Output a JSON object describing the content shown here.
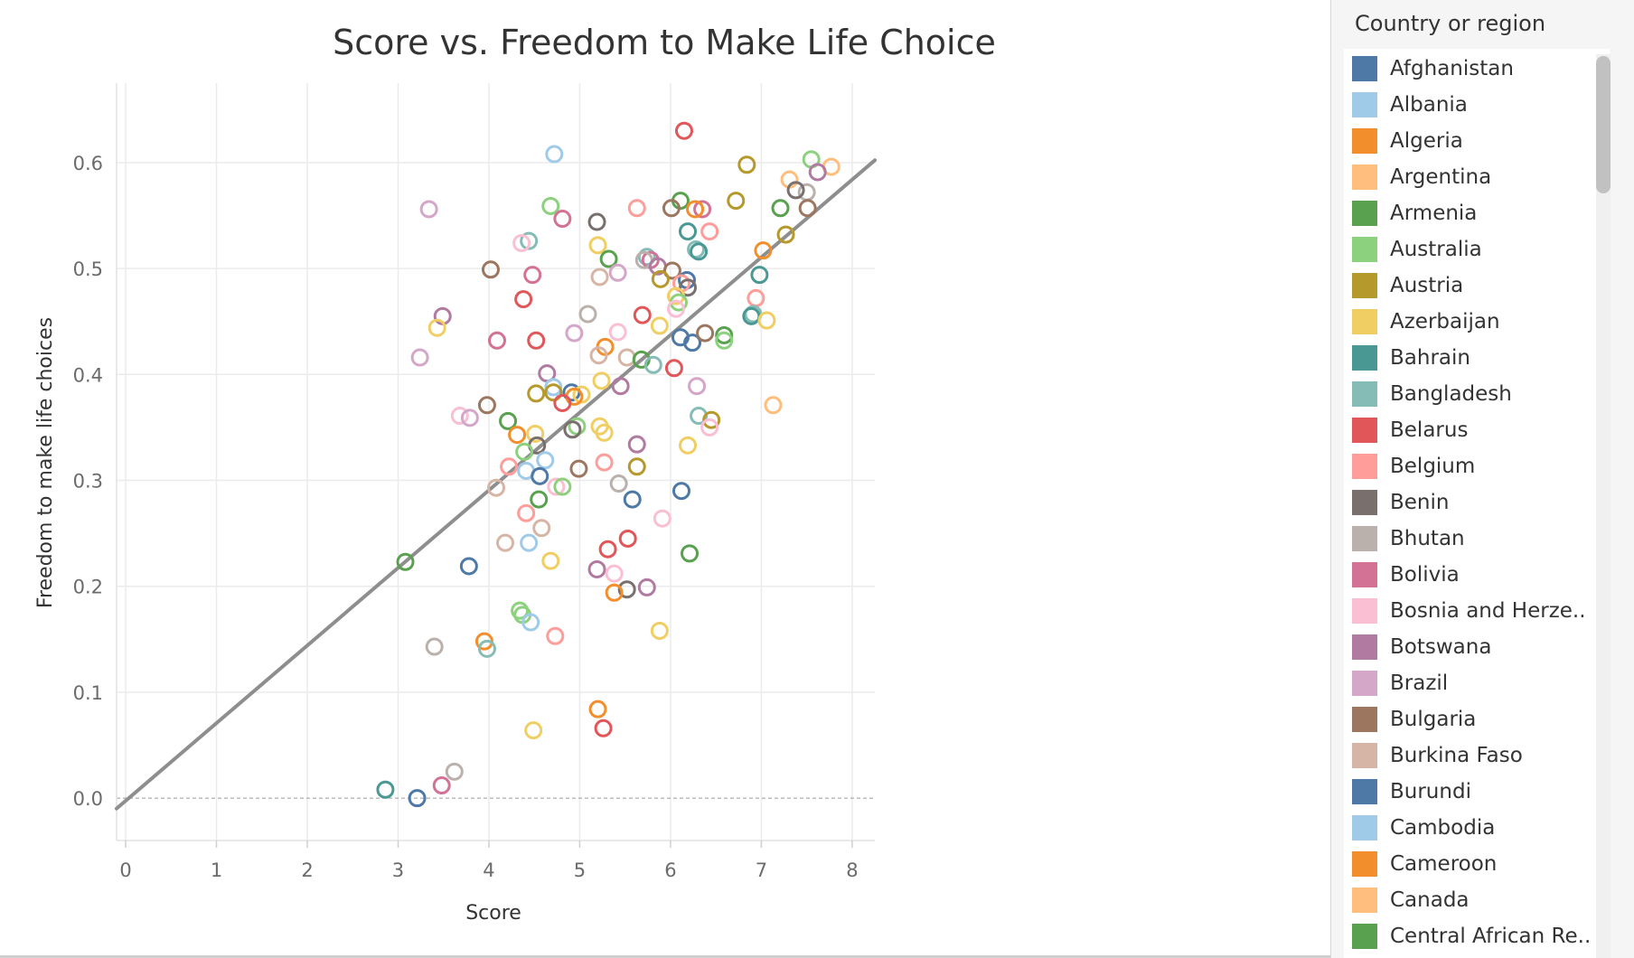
{
  "legend": {
    "title": "Country or region",
    "items": [
      {
        "label": "Afghanistan",
        "color": "#4e79a7"
      },
      {
        "label": "Albania",
        "color": "#a0cbe8"
      },
      {
        "label": "Algeria",
        "color": "#f28e2b"
      },
      {
        "label": "Argentina",
        "color": "#ffbe7d"
      },
      {
        "label": "Armenia",
        "color": "#59a14f"
      },
      {
        "label": "Australia",
        "color": "#8cd17d"
      },
      {
        "label": "Austria",
        "color": "#b6992d"
      },
      {
        "label": "Azerbaijan",
        "color": "#f1ce63"
      },
      {
        "label": "Bahrain",
        "color": "#499894"
      },
      {
        "label": "Bangladesh",
        "color": "#86bcb6"
      },
      {
        "label": "Belarus",
        "color": "#e15759"
      },
      {
        "label": "Belgium",
        "color": "#ff9d9a"
      },
      {
        "label": "Benin",
        "color": "#79706e"
      },
      {
        "label": "Bhutan",
        "color": "#bab0ac"
      },
      {
        "label": "Bolivia",
        "color": "#d37295"
      },
      {
        "label": "Bosnia and Herze..",
        "color": "#fabfd2"
      },
      {
        "label": "Botswana",
        "color": "#b07aa1"
      },
      {
        "label": "Brazil",
        "color": "#d4a6c8"
      },
      {
        "label": "Bulgaria",
        "color": "#9d7660"
      },
      {
        "label": "Burkina Faso",
        "color": "#d7b5a6"
      },
      {
        "label": "Burundi",
        "color": "#4e79a7"
      },
      {
        "label": "Cambodia",
        "color": "#a0cbe8"
      },
      {
        "label": "Cameroon",
        "color": "#f28e2b"
      },
      {
        "label": "Canada",
        "color": "#ffbe7d"
      },
      {
        "label": "Central African Re..",
        "color": "#59a14f"
      }
    ]
  },
  "chart_data": {
    "type": "scatter",
    "title": "Score vs. Freedom to Make Life Choice",
    "xlabel": "Score",
    "ylabel": "Freedom to make life choices",
    "xlim": [
      -0.1,
      8.25
    ],
    "ylim": [
      -0.04,
      0.675
    ],
    "x_ticks": [
      "0",
      "1",
      "2",
      "3",
      "4",
      "5",
      "6",
      "7",
      "8"
    ],
    "y_ticks": [
      "0.0",
      "0.1",
      "0.2",
      "0.3",
      "0.4",
      "0.5",
      "0.6"
    ],
    "grid": true,
    "marker": "hollow-circle",
    "trend_line": {
      "slope": 0.0733,
      "intercept": -0.0025,
      "color": "#8e8e8e"
    },
    "points": [
      {
        "x": 6.15,
        "y": 0.63,
        "color": "#e15759"
      },
      {
        "x": 4.72,
        "y": 0.608,
        "color": "#a0cbe8"
      },
      {
        "x": 3.34,
        "y": 0.556,
        "color": "#d4a6c8"
      },
      {
        "x": 6.84,
        "y": 0.598,
        "color": "#b6992d"
      },
      {
        "x": 7.55,
        "y": 0.603,
        "color": "#8cd17d"
      },
      {
        "x": 7.77,
        "y": 0.596,
        "color": "#ffbe7d"
      },
      {
        "x": 7.62,
        "y": 0.591,
        "color": "#b07aa1"
      },
      {
        "x": 7.31,
        "y": 0.584,
        "color": "#ffbe7d"
      },
      {
        "x": 7.5,
        "y": 0.572,
        "color": "#bab0ac"
      },
      {
        "x": 7.38,
        "y": 0.574,
        "color": "#79706e"
      },
      {
        "x": 6.72,
        "y": 0.564,
        "color": "#b6992d"
      },
      {
        "x": 6.11,
        "y": 0.564,
        "color": "#59a14f"
      },
      {
        "x": 4.68,
        "y": 0.559,
        "color": "#8cd17d"
      },
      {
        "x": 5.63,
        "y": 0.557,
        "color": "#ff9d9a"
      },
      {
        "x": 6.35,
        "y": 0.556,
        "color": "#d37295"
      },
      {
        "x": 6.27,
        "y": 0.556,
        "color": "#f28e2b"
      },
      {
        "x": 6.01,
        "y": 0.557,
        "color": "#9d7660"
      },
      {
        "x": 7.21,
        "y": 0.557,
        "color": "#59a14f"
      },
      {
        "x": 7.51,
        "y": 0.557,
        "color": "#9d7660"
      },
      {
        "x": 5.19,
        "y": 0.544,
        "color": "#79706e"
      },
      {
        "x": 4.81,
        "y": 0.547,
        "color": "#d37295"
      },
      {
        "x": 6.19,
        "y": 0.535,
        "color": "#499894"
      },
      {
        "x": 6.43,
        "y": 0.535,
        "color": "#ff9d9a"
      },
      {
        "x": 7.27,
        "y": 0.532,
        "color": "#b6992d"
      },
      {
        "x": 4.44,
        "y": 0.526,
        "color": "#86bcb6"
      },
      {
        "x": 4.36,
        "y": 0.524,
        "color": "#fabfd2"
      },
      {
        "x": 5.2,
        "y": 0.522,
        "color": "#f1ce63"
      },
      {
        "x": 6.28,
        "y": 0.518,
        "color": "#86bcb6"
      },
      {
        "x": 6.31,
        "y": 0.516,
        "color": "#499894"
      },
      {
        "x": 7.02,
        "y": 0.517,
        "color": "#f28e2b"
      },
      {
        "x": 5.32,
        "y": 0.509,
        "color": "#59a14f"
      },
      {
        "x": 5.74,
        "y": 0.511,
        "color": "#86bcb6"
      },
      {
        "x": 5.78,
        "y": 0.508,
        "color": "#d37295"
      },
      {
        "x": 5.71,
        "y": 0.508,
        "color": "#bab0ac"
      },
      {
        "x": 5.86,
        "y": 0.502,
        "color": "#b07aa1"
      },
      {
        "x": 6.02,
        "y": 0.498,
        "color": "#9d7660"
      },
      {
        "x": 4.02,
        "y": 0.499,
        "color": "#9d7660"
      },
      {
        "x": 4.48,
        "y": 0.494,
        "color": "#d37295"
      },
      {
        "x": 5.22,
        "y": 0.492,
        "color": "#d7b5a6"
      },
      {
        "x": 5.42,
        "y": 0.496,
        "color": "#d4a6c8"
      },
      {
        "x": 5.89,
        "y": 0.49,
        "color": "#b6992d"
      },
      {
        "x": 6.18,
        "y": 0.489,
        "color": "#4e79a7"
      },
      {
        "x": 6.12,
        "y": 0.486,
        "color": "#ff9d9a"
      },
      {
        "x": 6.19,
        "y": 0.482,
        "color": "#79706e"
      },
      {
        "x": 6.98,
        "y": 0.494,
        "color": "#499894"
      },
      {
        "x": 4.38,
        "y": 0.471,
        "color": "#e15759"
      },
      {
        "x": 6.06,
        "y": 0.474,
        "color": "#f1ce63"
      },
      {
        "x": 6.09,
        "y": 0.468,
        "color": "#8cd17d"
      },
      {
        "x": 6.06,
        "y": 0.462,
        "color": "#fabfd2"
      },
      {
        "x": 6.94,
        "y": 0.472,
        "color": "#ff9d9a"
      },
      {
        "x": 5.09,
        "y": 0.457,
        "color": "#bab0ac"
      },
      {
        "x": 5.69,
        "y": 0.456,
        "color": "#e15759"
      },
      {
        "x": 6.91,
        "y": 0.457,
        "color": "#86bcb6"
      },
      {
        "x": 6.89,
        "y": 0.455,
        "color": "#499894"
      },
      {
        "x": 3.49,
        "y": 0.455,
        "color": "#b07aa1"
      },
      {
        "x": 3.43,
        "y": 0.444,
        "color": "#f1ce63"
      },
      {
        "x": 5.88,
        "y": 0.446,
        "color": "#f1ce63"
      },
      {
        "x": 7.06,
        "y": 0.451,
        "color": "#f1ce63"
      },
      {
        "x": 4.09,
        "y": 0.432,
        "color": "#d37295"
      },
      {
        "x": 4.52,
        "y": 0.432,
        "color": "#e15759"
      },
      {
        "x": 4.94,
        "y": 0.439,
        "color": "#d4a6c8"
      },
      {
        "x": 5.42,
        "y": 0.44,
        "color": "#fabfd2"
      },
      {
        "x": 6.11,
        "y": 0.435,
        "color": "#4e79a7"
      },
      {
        "x": 6.24,
        "y": 0.43,
        "color": "#4e79a7"
      },
      {
        "x": 6.38,
        "y": 0.439,
        "color": "#9d7660"
      },
      {
        "x": 6.59,
        "y": 0.437,
        "color": "#59a14f"
      },
      {
        "x": 6.59,
        "y": 0.432,
        "color": "#8cd17d"
      },
      {
        "x": 5.28,
        "y": 0.426,
        "color": "#f28e2b"
      },
      {
        "x": 3.24,
        "y": 0.416,
        "color": "#d4a6c8"
      },
      {
        "x": 5.21,
        "y": 0.418,
        "color": "#d7b5a6"
      },
      {
        "x": 5.52,
        "y": 0.416,
        "color": "#d7b5a6"
      },
      {
        "x": 5.68,
        "y": 0.414,
        "color": "#59a14f"
      },
      {
        "x": 5.81,
        "y": 0.409,
        "color": "#86bcb6"
      },
      {
        "x": 6.04,
        "y": 0.406,
        "color": "#e15759"
      },
      {
        "x": 4.64,
        "y": 0.401,
        "color": "#b07aa1"
      },
      {
        "x": 5.24,
        "y": 0.394,
        "color": "#f1ce63"
      },
      {
        "x": 5.45,
        "y": 0.389,
        "color": "#b07aa1"
      },
      {
        "x": 6.29,
        "y": 0.389,
        "color": "#d4a6c8"
      },
      {
        "x": 4.71,
        "y": 0.388,
        "color": "#a0cbe8"
      },
      {
        "x": 4.91,
        "y": 0.383,
        "color": "#4e79a7"
      },
      {
        "x": 4.71,
        "y": 0.383,
        "color": "#b6992d"
      },
      {
        "x": 5.02,
        "y": 0.381,
        "color": "#f1ce63"
      },
      {
        "x": 4.52,
        "y": 0.382,
        "color": "#b6992d"
      },
      {
        "x": 4.94,
        "y": 0.379,
        "color": "#f28e2b"
      },
      {
        "x": 4.81,
        "y": 0.373,
        "color": "#e15759"
      },
      {
        "x": 3.98,
        "y": 0.371,
        "color": "#9d7660"
      },
      {
        "x": 7.13,
        "y": 0.371,
        "color": "#ffbe7d"
      },
      {
        "x": 3.68,
        "y": 0.361,
        "color": "#fabfd2"
      },
      {
        "x": 3.79,
        "y": 0.359,
        "color": "#d4a6c8"
      },
      {
        "x": 6.31,
        "y": 0.361,
        "color": "#86bcb6"
      },
      {
        "x": 6.45,
        "y": 0.357,
        "color": "#b6992d"
      },
      {
        "x": 6.43,
        "y": 0.35,
        "color": "#fabfd2"
      },
      {
        "x": 4.21,
        "y": 0.356,
        "color": "#59a14f"
      },
      {
        "x": 4.97,
        "y": 0.351,
        "color": "#8cd17d"
      },
      {
        "x": 4.92,
        "y": 0.348,
        "color": "#79706e"
      },
      {
        "x": 5.22,
        "y": 0.351,
        "color": "#f1ce63"
      },
      {
        "x": 5.27,
        "y": 0.345,
        "color": "#f1ce63"
      },
      {
        "x": 4.51,
        "y": 0.344,
        "color": "#f1ce63"
      },
      {
        "x": 4.31,
        "y": 0.343,
        "color": "#f28e2b"
      },
      {
        "x": 5.63,
        "y": 0.334,
        "color": "#b07aa1"
      },
      {
        "x": 4.53,
        "y": 0.333,
        "color": "#79706e"
      },
      {
        "x": 4.39,
        "y": 0.327,
        "color": "#8cd17d"
      },
      {
        "x": 6.19,
        "y": 0.333,
        "color": "#f1ce63"
      },
      {
        "x": 4.62,
        "y": 0.319,
        "color": "#a0cbe8"
      },
      {
        "x": 5.27,
        "y": 0.317,
        "color": "#ff9d9a"
      },
      {
        "x": 4.22,
        "y": 0.313,
        "color": "#ff9d9a"
      },
      {
        "x": 4.41,
        "y": 0.309,
        "color": "#a0cbe8"
      },
      {
        "x": 4.99,
        "y": 0.311,
        "color": "#9d7660"
      },
      {
        "x": 5.63,
        "y": 0.313,
        "color": "#b6992d"
      },
      {
        "x": 4.56,
        "y": 0.304,
        "color": "#4e79a7"
      },
      {
        "x": 5.43,
        "y": 0.297,
        "color": "#bab0ac"
      },
      {
        "x": 4.08,
        "y": 0.293,
        "color": "#d7b5a6"
      },
      {
        "x": 4.74,
        "y": 0.294,
        "color": "#fabfd2"
      },
      {
        "x": 4.81,
        "y": 0.294,
        "color": "#8cd17d"
      },
      {
        "x": 6.12,
        "y": 0.29,
        "color": "#4e79a7"
      },
      {
        "x": 4.55,
        "y": 0.282,
        "color": "#59a14f"
      },
      {
        "x": 5.58,
        "y": 0.282,
        "color": "#4e79a7"
      },
      {
        "x": 4.41,
        "y": 0.269,
        "color": "#ff9d9a"
      },
      {
        "x": 5.91,
        "y": 0.264,
        "color": "#fabfd2"
      },
      {
        "x": 4.58,
        "y": 0.255,
        "color": "#d7b5a6"
      },
      {
        "x": 4.18,
        "y": 0.241,
        "color": "#d7b5a6"
      },
      {
        "x": 4.44,
        "y": 0.241,
        "color": "#a0cbe8"
      },
      {
        "x": 5.53,
        "y": 0.245,
        "color": "#e15759"
      },
      {
        "x": 5.31,
        "y": 0.235,
        "color": "#e15759"
      },
      {
        "x": 6.21,
        "y": 0.231,
        "color": "#59a14f"
      },
      {
        "x": 3.08,
        "y": 0.223,
        "color": "#59a14f"
      },
      {
        "x": 4.68,
        "y": 0.224,
        "color": "#f1ce63"
      },
      {
        "x": 3.78,
        "y": 0.219,
        "color": "#4e79a7"
      },
      {
        "x": 5.19,
        "y": 0.216,
        "color": "#b07aa1"
      },
      {
        "x": 5.38,
        "y": 0.212,
        "color": "#fabfd2"
      },
      {
        "x": 5.52,
        "y": 0.197,
        "color": "#79706e"
      },
      {
        "x": 5.74,
        "y": 0.199,
        "color": "#b07aa1"
      },
      {
        "x": 5.38,
        "y": 0.194,
        "color": "#f28e2b"
      },
      {
        "x": 4.34,
        "y": 0.177,
        "color": "#8cd17d"
      },
      {
        "x": 4.37,
        "y": 0.173,
        "color": "#8cd17d"
      },
      {
        "x": 4.46,
        "y": 0.166,
        "color": "#a0cbe8"
      },
      {
        "x": 5.88,
        "y": 0.158,
        "color": "#f1ce63"
      },
      {
        "x": 4.73,
        "y": 0.153,
        "color": "#ff9d9a"
      },
      {
        "x": 3.95,
        "y": 0.148,
        "color": "#f28e2b"
      },
      {
        "x": 3.98,
        "y": 0.141,
        "color": "#86bcb6"
      },
      {
        "x": 3.4,
        "y": 0.143,
        "color": "#bab0ac"
      },
      {
        "x": 5.2,
        "y": 0.084,
        "color": "#f28e2b"
      },
      {
        "x": 5.26,
        "y": 0.066,
        "color": "#e15759"
      },
      {
        "x": 4.49,
        "y": 0.064,
        "color": "#f1ce63"
      },
      {
        "x": 3.62,
        "y": 0.025,
        "color": "#bab0ac"
      },
      {
        "x": 3.48,
        "y": 0.012,
        "color": "#d37295"
      },
      {
        "x": 2.86,
        "y": 0.008,
        "color": "#499894"
      },
      {
        "x": 3.21,
        "y": 0.0,
        "color": "#4e79a7"
      }
    ]
  }
}
